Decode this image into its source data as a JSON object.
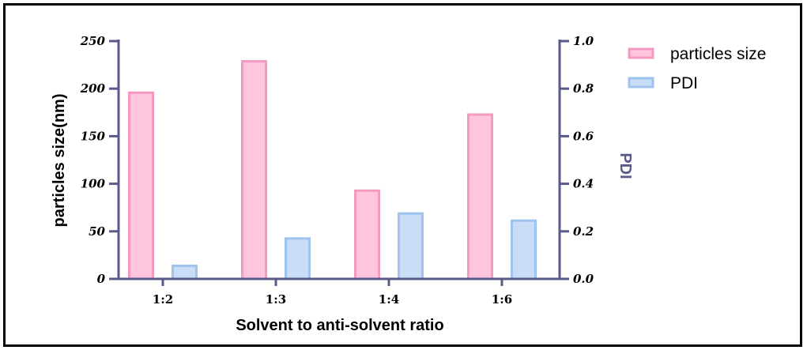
{
  "chart_data": {
    "type": "bar",
    "categories": [
      "1:2",
      "1:3",
      "1:4",
      "1:6"
    ],
    "series": [
      {
        "name": "particles size",
        "axis": "left",
        "values": [
          197,
          230,
          94,
          174
        ],
        "fill": "#ffc4de",
        "stroke": "#f49ac1"
      },
      {
        "name": "PDI",
        "axis": "right",
        "values": [
          0.06,
          0.175,
          0.28,
          0.25
        ],
        "fill": "#c9ddf7",
        "stroke": "#9fc3ef"
      }
    ],
    "xlabel": "Solvent to anti-solvent ratio",
    "ylabel": "particles size(nm)",
    "y2label": "PDI",
    "ylim": [
      0,
      250
    ],
    "y2lim": [
      0,
      1.0
    ],
    "yticks": [
      "0",
      "50",
      "100",
      "150",
      "200",
      "250"
    ],
    "y2ticks": [
      "0.0",
      "0.2",
      "0.4",
      "0.6",
      "0.8",
      "1.0"
    ],
    "axis_color": "#5a5a8a",
    "legend_position": "top-right"
  }
}
